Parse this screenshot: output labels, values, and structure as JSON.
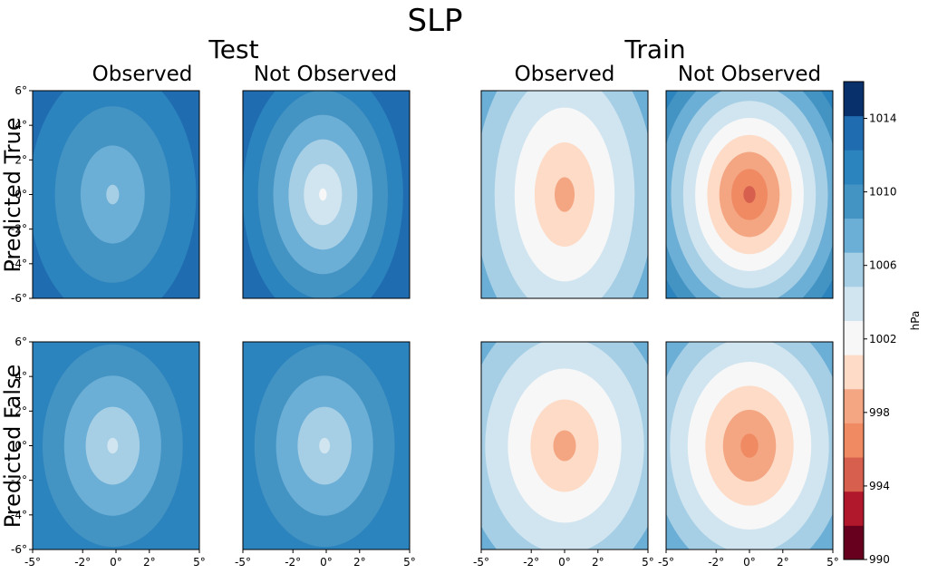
{
  "chart_data": {
    "type": "heatmap",
    "subtype": "filled-contour",
    "title": "SLP",
    "groups": [
      "Test",
      "Train"
    ],
    "columns": [
      "Observed",
      "Not Observed"
    ],
    "rows": [
      "Predicted True",
      "Predicted False"
    ],
    "x_ticks": [
      "-5°",
      "-2°",
      "0°",
      "2°",
      "5°"
    ],
    "y_ticks": [
      "6°",
      "4°",
      "2°",
      "0°",
      "-2°",
      "-4°",
      "-6°"
    ],
    "xlim": [
      -5,
      5
    ],
    "ylim": [
      -6,
      6
    ],
    "colorbar": {
      "label": "hPa",
      "min": 990,
      "max": 1016,
      "step": 2,
      "tick_values": [
        990,
        994,
        998,
        1002,
        1006,
        1010,
        1014
      ],
      "tick_labels": [
        "990",
        "994",
        "998",
        "1002",
        "1006",
        "1010",
        "1014"
      ],
      "colors": [
        "#67001f",
        "#b2182b",
        "#d6604d",
        "#ef8a62",
        "#f4a582",
        "#fddbc7",
        "#f7f7f7",
        "#d1e5f0",
        "#a6cfe5",
        "#6baed6",
        "#4393c3",
        "#2c84be",
        "#1f6db0",
        "#08306b"
      ]
    },
    "panels": [
      {
        "group": "Test",
        "column": "Observed",
        "row": "Predicted True",
        "center_min": 1007.5,
        "center_x": -0.2,
        "center_y": 0.0,
        "gradient": 0.75,
        "sx": 1.05,
        "sy": 1.0
      },
      {
        "group": "Test",
        "column": "Not Observed",
        "row": "Predicted True",
        "center_min": 1003.5,
        "center_x": -0.2,
        "center_y": 0.0,
        "gradient": 1.2,
        "sx": 1.0,
        "sy": 1.0
      },
      {
        "group": "Test",
        "column": "Observed",
        "row": "Predicted False",
        "center_min": 1005.5,
        "center_x": -0.2,
        "center_y": 0.0,
        "gradient": 0.85,
        "sx": 1.0,
        "sy": 0.9
      },
      {
        "group": "Test",
        "column": "Not Observed",
        "row": "Predicted False",
        "center_min": 1005.5,
        "center_x": -0.1,
        "center_y": 0.0,
        "gradient": 0.85,
        "sx": 1.0,
        "sy": 0.9
      },
      {
        "group": "Train",
        "column": "Observed",
        "row": "Predicted True",
        "center_min": 999.0,
        "center_x": 0.0,
        "center_y": 0.0,
        "gradient": 1.1,
        "sx": 1.2,
        "sy": 1.3
      },
      {
        "group": "Train",
        "column": "Not Observed",
        "row": "Predicted True",
        "center_min": 995.0,
        "center_x": 0.0,
        "center_y": 0.0,
        "gradient": 1.9,
        "sx": 1.25,
        "sy": 1.1
      },
      {
        "group": "Train",
        "column": "Observed",
        "row": "Predicted False",
        "center_min": 999.0,
        "center_x": 0.0,
        "center_y": 0.0,
        "gradient": 1.05,
        "sx": 1.3,
        "sy": 1.1
      },
      {
        "group": "Train",
        "column": "Not Observed",
        "row": "Predicted False",
        "center_min": 997.0,
        "center_x": 0.0,
        "center_y": 0.0,
        "gradient": 1.35,
        "sx": 1.3,
        "sy": 1.1
      }
    ]
  }
}
